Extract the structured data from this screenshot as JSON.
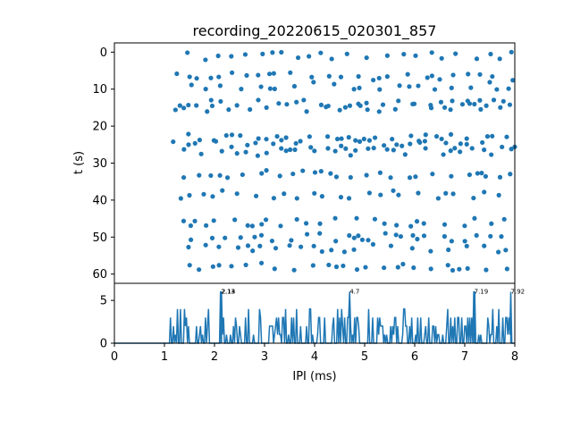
{
  "chart_data": [
    {
      "type": "scatter",
      "title": "recording_20220615_020301_857",
      "xlabel": "",
      "ylabel": "t (s)",
      "xlim": [
        0,
        8
      ],
      "ylim": [
        62.5,
        -2.5
      ],
      "y_inverted": true,
      "yticks": [
        "0",
        "10",
        "20",
        "30",
        "40",
        "50",
        "60"
      ],
      "color": "#1f77b4",
      "x_range_of_points": [
        1.15,
        8.0
      ],
      "spike_rows_t": [
        1,
        6.5,
        9,
        14,
        15,
        23,
        25,
        27,
        33,
        38.5,
        46,
        50,
        53,
        58
      ]
    },
    {
      "type": "line",
      "title": "",
      "xlabel": "IPI (ms)",
      "ylabel": "",
      "xlim": [
        0,
        8
      ],
      "ylim": [
        0,
        7
      ],
      "xticks": [
        "0",
        "1",
        "2",
        "3",
        "4",
        "5",
        "6",
        "7",
        "8"
      ],
      "yticks": [
        "0",
        "5"
      ],
      "color": "#1f77b4",
      "baseline_zero_until_ms": 1.1,
      "peaks": [
        {
          "x": 2.13,
          "y": 6,
          "label": "2.13"
        },
        {
          "x": 2.14,
          "y": 6,
          "label": "2.14"
        },
        {
          "x": 4.7,
          "y": 6,
          "label": "4.7"
        },
        {
          "x": 7.19,
          "y": 6,
          "label": "7.19"
        },
        {
          "x": 7.92,
          "y": 6,
          "label": "7.92"
        }
      ]
    }
  ]
}
